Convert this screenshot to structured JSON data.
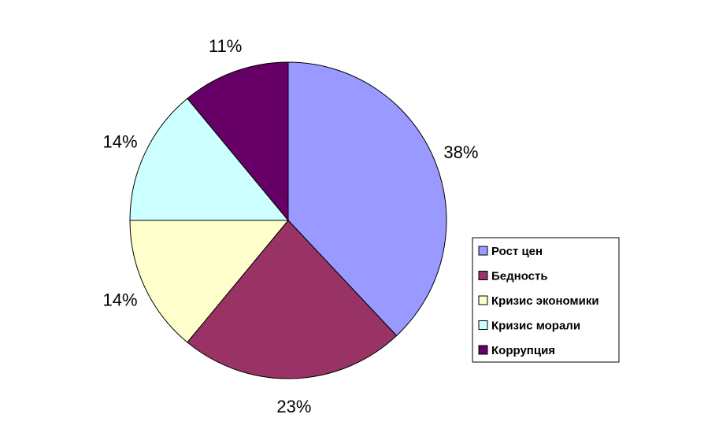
{
  "chart_data": {
    "type": "pie",
    "categories": [
      "Рост цен",
      "Бедность",
      "Кризис экономики",
      "Кризис морали",
      "Коррупция"
    ],
    "values": [
      38,
      23,
      14,
      14,
      11
    ],
    "labels": [
      "38%",
      "23%",
      "14%",
      "14%",
      "11%"
    ],
    "colors": [
      "#9999ff",
      "#993366",
      "#ffffcc",
      "#ccffff",
      "#660066"
    ],
    "start_angle_deg": 0,
    "direction": "clockwise",
    "legend_position": "right",
    "title": ""
  }
}
